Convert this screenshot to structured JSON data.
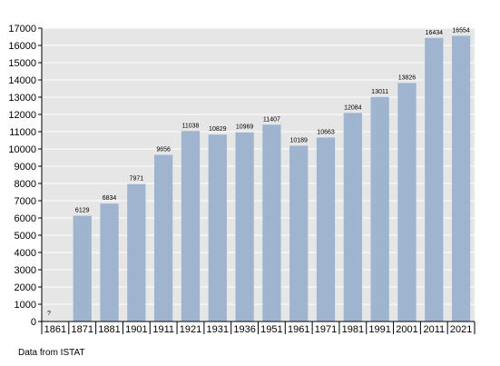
{
  "chart_data": {
    "type": "bar",
    "categories": [
      "1861",
      "1871",
      "1881",
      "1901",
      "1911",
      "1921",
      "1931",
      "1936",
      "1951",
      "1961",
      "1971",
      "1981",
      "1991",
      "2001",
      "2011",
      "2021"
    ],
    "values": [
      null,
      6129,
      6834,
      7971,
      9656,
      11038,
      10829,
      10969,
      11407,
      10189,
      10663,
      12084,
      13011,
      13826,
      16434,
      16554
    ],
    "data_labels": [
      "?",
      "6129",
      "6834",
      "7971",
      "9656",
      "11038",
      "10829",
      "10969",
      "11407",
      "10189",
      "10663",
      "12084",
      "13011",
      "13826",
      "16434",
      "16554"
    ],
    "ylim": [
      0,
      17000
    ],
    "yticks": [
      0,
      1000,
      2000,
      3000,
      4000,
      5000,
      6000,
      7000,
      8000,
      9000,
      10000,
      11000,
      12000,
      13000,
      14000,
      15000,
      16000,
      17000
    ],
    "grid": true,
    "bar_color": "#9fb5cf",
    "plot_background": "#e6e6e6",
    "title": "",
    "xlabel": "",
    "ylabel": ""
  },
  "source_note": "Data from ISTAT"
}
